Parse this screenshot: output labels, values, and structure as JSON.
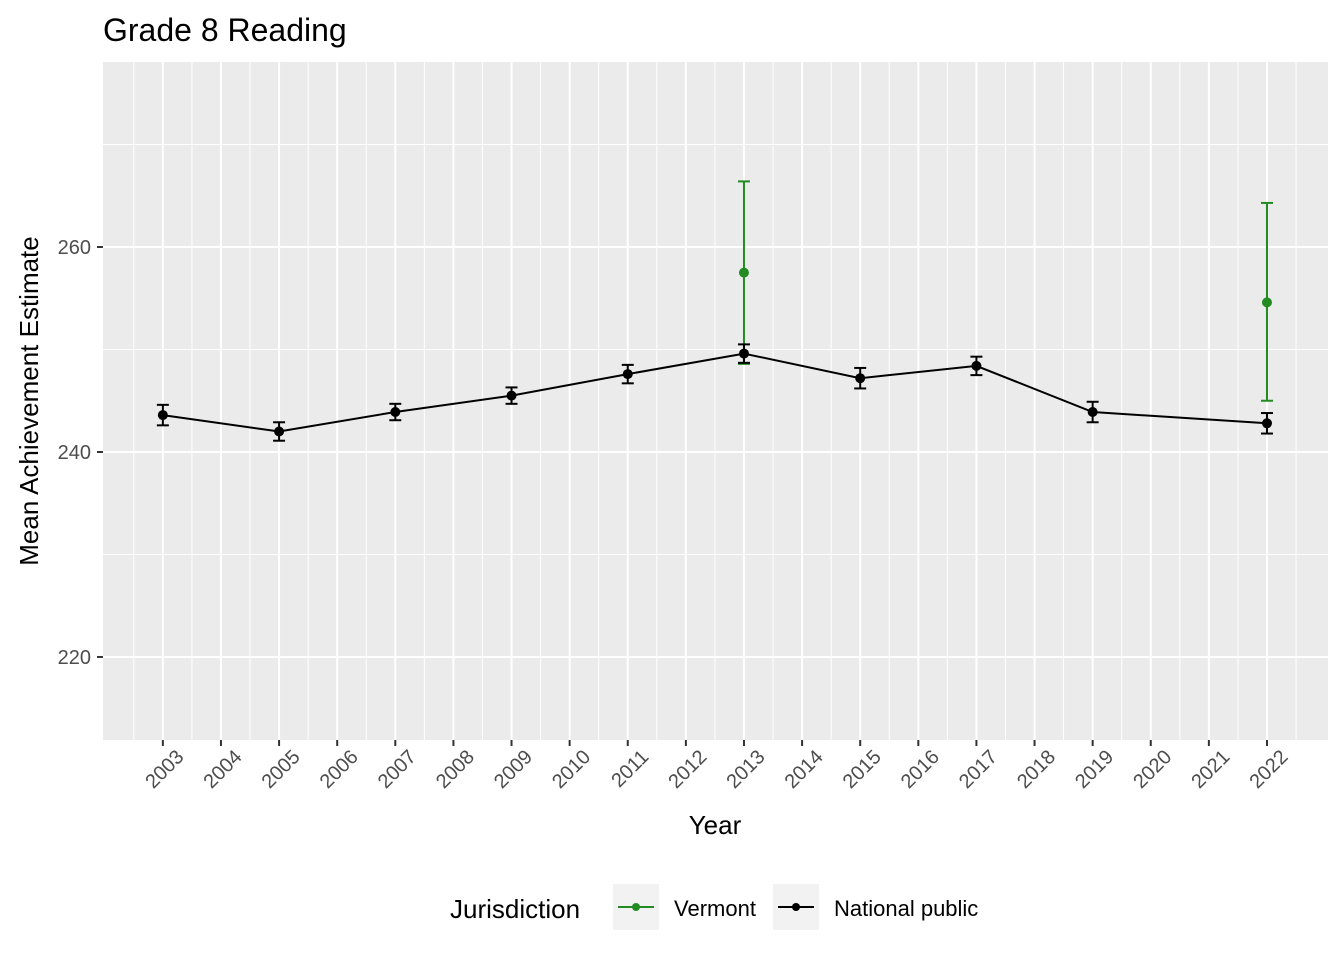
{
  "chart_data": {
    "type": "line",
    "title": "Grade 8 Reading",
    "xlabel": "Year",
    "ylabel": "Mean Achievement Estimate",
    "xlim": [
      2001.97,
      2023.05
    ],
    "ylim": [
      211.9,
      278.05
    ],
    "x_ticks": [
      2003,
      2004,
      2005,
      2006,
      2007,
      2008,
      2009,
      2010,
      2011,
      2012,
      2013,
      2014,
      2015,
      2016,
      2017,
      2018,
      2019,
      2020,
      2021,
      2022
    ],
    "y_ticks": [
      220,
      240,
      260
    ],
    "grid": true,
    "legend": {
      "title": "Jurisdiction",
      "position": "bottom",
      "entries": [
        "Vermont",
        "National public"
      ]
    },
    "series": [
      {
        "name": "Vermont",
        "color": "#228B22",
        "line": false,
        "points": [
          {
            "x": 2013,
            "y": 257.5,
            "lo": 248.6,
            "hi": 266.4
          },
          {
            "x": 2022,
            "y": 254.6,
            "lo": 245.0,
            "hi": 264.3
          }
        ]
      },
      {
        "name": "National public",
        "color": "#000000",
        "line": true,
        "points": [
          {
            "x": 2003,
            "y": 243.6,
            "lo": 242.6,
            "hi": 244.6
          },
          {
            "x": 2005,
            "y": 242.0,
            "lo": 241.1,
            "hi": 242.9
          },
          {
            "x": 2007,
            "y": 243.9,
            "lo": 243.1,
            "hi": 244.7
          },
          {
            "x": 2009,
            "y": 245.5,
            "lo": 244.7,
            "hi": 246.3
          },
          {
            "x": 2011,
            "y": 247.6,
            "lo": 246.7,
            "hi": 248.5
          },
          {
            "x": 2013,
            "y": 249.6,
            "lo": 248.7,
            "hi": 250.5
          },
          {
            "x": 2015,
            "y": 247.2,
            "lo": 246.2,
            "hi": 248.2
          },
          {
            "x": 2017,
            "y": 248.4,
            "lo": 247.5,
            "hi": 249.3
          },
          {
            "x": 2019,
            "y": 243.9,
            "lo": 242.9,
            "hi": 244.9
          },
          {
            "x": 2022,
            "y": 242.8,
            "lo": 241.8,
            "hi": 243.8
          }
        ]
      }
    ]
  }
}
